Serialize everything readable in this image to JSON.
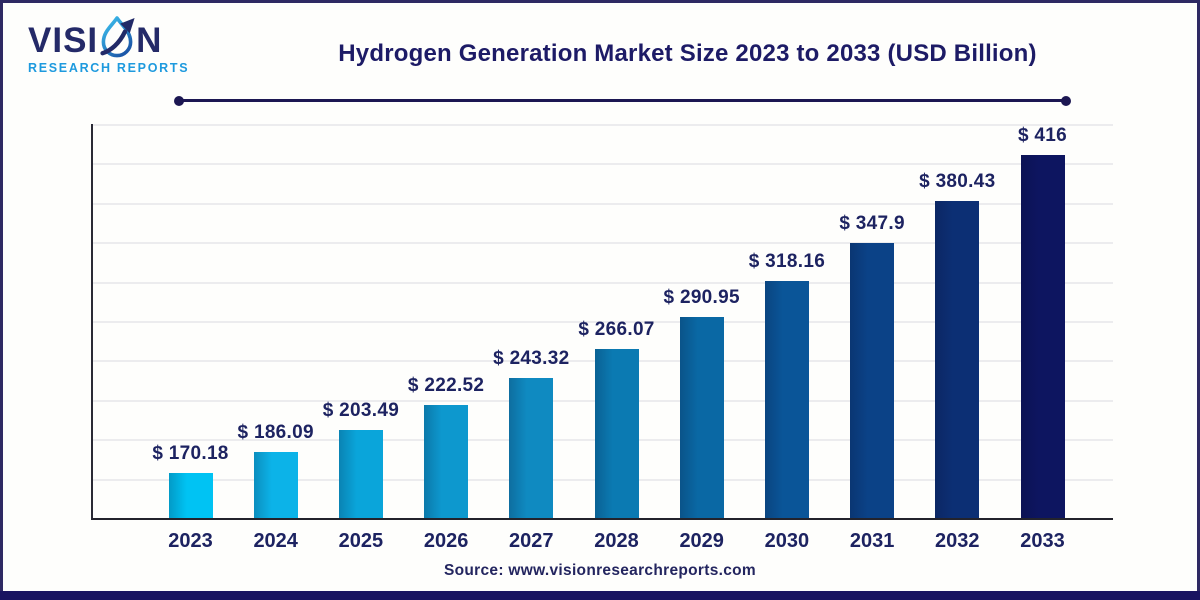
{
  "brand": {
    "name_pre": "VISI",
    "name_post": "N",
    "tagline": "RESEARCH REPORTS",
    "icon": "water-drop-arrow-icon"
  },
  "header": {
    "title": "Hydrogen Generation Market Size 2023 to 2033 (USD Billion)"
  },
  "footer": {
    "source": "Source: www.visionresearchreports.com"
  },
  "colors": {
    "navy_text": "#1d2361",
    "title_navy": "#1d1b66",
    "tagline_blue": "#1e9ade",
    "frame_border": "#2e2963",
    "footer_bar": "#191460",
    "gridline": "#ececee",
    "axis": "#2a2a35"
  },
  "chart_data": {
    "type": "bar",
    "title": "Hydrogen Generation Market Size 2023 to 2033 (USD Billion)",
    "unit": "USD Billion",
    "categories": [
      "2023",
      "2024",
      "2025",
      "2026",
      "2027",
      "2028",
      "2029",
      "2030",
      "2031",
      "2032",
      "2033"
    ],
    "values": [
      170.18,
      186.09,
      203.49,
      222.52,
      243.32,
      266.07,
      290.95,
      318.16,
      347.9,
      380.43,
      416
    ],
    "labels": [
      "$ 170.18",
      "$ 186.09",
      "$ 203.49",
      "$ 222.52",
      "$ 243.32",
      "$ 266.07",
      "$ 290.95",
      "$ 318.16",
      "$ 347.9",
      "$ 380.43",
      "$ 416"
    ],
    "xlabel": "",
    "ylabel": "",
    "ylim": [
      135,
      440
    ],
    "grid": true,
    "gridline_count": 10,
    "legend": false,
    "bar_colors": [
      "#00c3f3",
      "#0cb3e8",
      "#0aa5da",
      "#0d98ce",
      "#0f8ac1",
      "#0b7ab2",
      "#0a68a4",
      "#0a5598",
      "#0b4287",
      "#0c2f74",
      "#0d1560"
    ]
  }
}
